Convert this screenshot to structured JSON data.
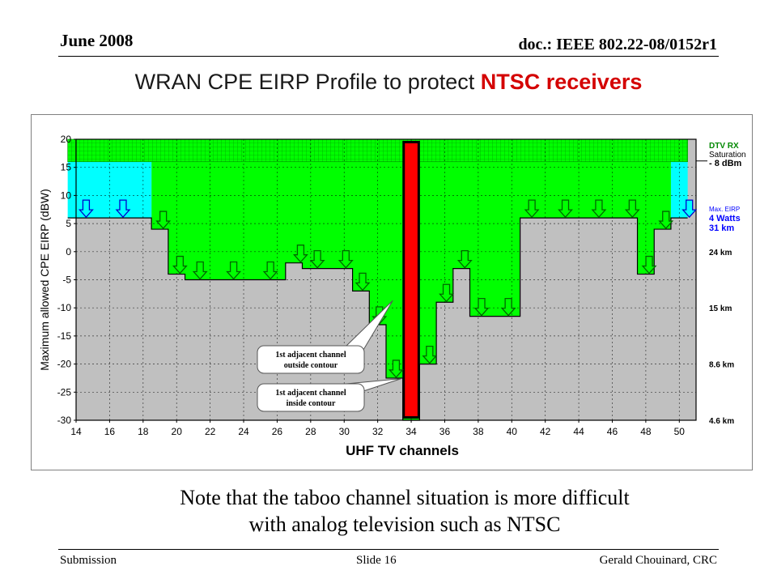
{
  "header": {
    "date": "June 2008",
    "doc": "doc.: IEEE 802.22-08/0152r1"
  },
  "slide_title": {
    "main": "WRAN CPE EIRP Profile to protect ",
    "accent": "NTSC receivers"
  },
  "note": {
    "line1": "Note that the taboo channel situation is more difficult",
    "line2": "with analog television such as NTSC"
  },
  "footer": {
    "left": "Submission",
    "center": "Slide 16",
    "right": "Gerald Chouinard, CRC"
  },
  "colors": {
    "gray": "#c0c0c0",
    "green": "#00ff00",
    "cyan": "#00ffff",
    "red": "#ff0000",
    "hatch": "#00cc00",
    "annot_blue": "#0000ff"
  },
  "chart_data": {
    "type": "area",
    "title": "",
    "xlabel": "UHF TV channels",
    "ylabel": "Maximum allowed CPE EIRP (dBW)",
    "xlim": [
      14,
      51
    ],
    "ylim": [
      -30,
      20
    ],
    "x_ticks": [
      14,
      16,
      18,
      20,
      22,
      24,
      26,
      28,
      30,
      32,
      34,
      36,
      38,
      40,
      42,
      44,
      46,
      48,
      50
    ],
    "y_ticks": [
      -30,
      -25,
      -20,
      -15,
      -10,
      -5,
      0,
      5,
      10,
      15,
      20
    ],
    "grid": true,
    "series": [
      {
        "kind": "max_allowed",
        "channels": [
          14,
          15,
          16,
          17,
          18,
          19,
          20,
          21,
          22,
          23,
          24,
          25,
          26,
          27,
          28,
          29,
          30,
          31,
          32,
          33,
          34,
          35,
          36,
          37,
          38,
          39,
          40,
          41,
          42,
          43,
          44,
          45,
          46,
          47,
          48,
          49,
          50
        ],
        "values": [
          6,
          6,
          6,
          6,
          6,
          4,
          -4,
          -5,
          -5,
          -5,
          -5,
          -5,
          -5,
          -2,
          -3,
          -3,
          -3,
          -7,
          -13,
          -22.5,
          -30,
          -20,
          -9,
          -3,
          -11.5,
          -11.5,
          -11.5,
          6,
          6,
          6,
          6,
          6,
          6,
          6,
          -4,
          4,
          6
        ]
      },
      {
        "kind": "dtv_saturation_band",
        "values": [
          16,
          20
        ]
      },
      {
        "kind": "dtv_unconstrained_limit",
        "values": [
          16
        ]
      }
    ],
    "taboo_channel": 34,
    "arrow_channels": [
      14.6,
      16.8,
      19.2,
      20.2,
      21.4,
      23.4,
      25.6,
      27.4,
      28.4,
      30.1,
      31.1,
      32.1,
      33.1,
      35.1,
      36.1,
      37.2,
      38.2,
      39.8,
      41.2,
      43.2,
      45.2,
      47.2,
      48.2,
      49.2,
      50.6
    ],
    "callouts": [
      {
        "line1": "1st adjacent channel",
        "line2": "outside contour"
      },
      {
        "line1": "1st adjacent channel",
        "line2": "inside contour"
      }
    ],
    "right_annotations": {
      "sat_line1": "DTV RX",
      "sat_line2": "Saturation",
      "sat_line3": "- 8 dBm",
      "eirp_line1": "Max. EIRP",
      "eirp_line2": "4 Watts",
      "eirp_line3": "31 km",
      "distances": [
        {
          "label": "24 km",
          "y": 0
        },
        {
          "label": "15 km",
          "y": -10
        },
        {
          "label": "8.6 km",
          "y": -20
        },
        {
          "label": "4.6 km",
          "y": -30
        }
      ]
    }
  }
}
